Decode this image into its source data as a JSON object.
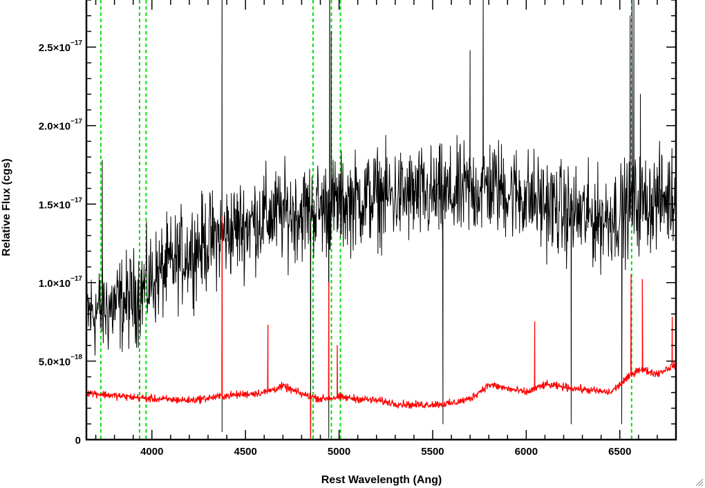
{
  "chart_data": {
    "type": "line",
    "xlabel": "Rest Wavelength (Ang)",
    "ylabel": "Relative Flux (cgs)",
    "xlim": [
      3650,
      6800
    ],
    "ylim": [
      0,
      2.8e-17
    ],
    "x_ticks": [
      {
        "value": 4000,
        "label": "4000"
      },
      {
        "value": 4500,
        "label": "4500"
      },
      {
        "value": 5000,
        "label": "5000"
      },
      {
        "value": 5500,
        "label": "5500"
      },
      {
        "value": 6000,
        "label": "6000"
      },
      {
        "value": 6500,
        "label": "6500"
      }
    ],
    "y_ticks": [
      {
        "value": 0,
        "label": "0"
      },
      {
        "value": 5e-18,
        "mantissa": "5.0×10",
        "exponent": "−18"
      },
      {
        "value": 1e-17,
        "mantissa": "1.0×10",
        "exponent": "−17"
      },
      {
        "value": 1.5e-17,
        "mantissa": "1.5×10",
        "exponent": "−17"
      },
      {
        "value": 2e-17,
        "mantissa": "2.0×10",
        "exponent": "−17"
      },
      {
        "value": 2.5e-17,
        "mantissa": "2.5×10",
        "exponent": "−17"
      }
    ],
    "grid": false,
    "legend": "none",
    "reference_lines": {
      "color": "#00e000",
      "style": "dashed",
      "x": [
        3727,
        3934,
        3969,
        4861,
        4959,
        5007,
        6563
      ]
    },
    "series": [
      {
        "color": "#000000",
        "continuum_x": [
          3650,
          3800,
          3900,
          4000,
          4200,
          4400,
          4600,
          4800,
          5000,
          5200,
          5400,
          5600,
          5800,
          6000,
          6200,
          6400,
          6600,
          6800
        ],
        "continuum_y": [
          8e-18,
          8.5e-18,
          9e-18,
          1.02e-17,
          1.2e-17,
          1.32e-17,
          1.42e-17,
          1.45e-17,
          1.5e-17,
          1.55e-17,
          1.55e-17,
          1.55e-17,
          1.62e-17,
          1.55e-17,
          1.45e-17,
          1.4e-17,
          1.5e-17,
          1.55e-17
        ],
        "noise_amplitude": 4.5e-18,
        "spikes": [
          {
            "x": 3735,
            "y": 1.78e-17
          },
          {
            "x": 4375,
            "y": 3.5e-17
          },
          {
            "x": 4375,
            "y": 5e-19
          },
          {
            "x": 4848,
            "y": 3e-19
          },
          {
            "x": 4945,
            "y": 1e-19
          },
          {
            "x": 4950,
            "y": 3.2e-17
          },
          {
            "x": 4958,
            "y": 2.6e-17
          },
          {
            "x": 5555,
            "y": 1e-18
          },
          {
            "x": 5700,
            "y": 2.48e-17
          },
          {
            "x": 5770,
            "y": 2.9e-17
          },
          {
            "x": 6240,
            "y": 1e-18
          },
          {
            "x": 6510,
            "y": 1e-18
          },
          {
            "x": 6555,
            "y": 2.7e-17
          },
          {
            "x": 6565,
            "y": 2.9e-17
          },
          {
            "x": 6575,
            "y": 2.85e-17
          },
          {
            "x": 6610,
            "y": 2.2e-17
          }
        ]
      },
      {
        "color": "#ff0000",
        "continuum_x": [
          3650,
          3800,
          4000,
          4200,
          4400,
          4600,
          4700,
          4800,
          4900,
          5000,
          5200,
          5300,
          5400,
          5600,
          5700,
          5800,
          6000,
          6100,
          6300,
          6450,
          6500,
          6600,
          6700,
          6800
        ],
        "continuum_y": [
          3e-18,
          2.8e-18,
          2.6e-18,
          2.5e-18,
          2.8e-18,
          3e-18,
          3.4e-18,
          2.9e-18,
          2.6e-18,
          2.7e-18,
          2.5e-18,
          2.3e-18,
          2.2e-18,
          2.3e-18,
          2.6e-18,
          3.5e-18,
          3e-18,
          3.5e-18,
          3.2e-18,
          3e-18,
          3.5e-18,
          4.5e-18,
          4.2e-18,
          4.8e-18
        ],
        "noise_amplitude": 3.5e-19,
        "spikes": [
          {
            "x": 4375,
            "y": 1.42e-17
          },
          {
            "x": 4620,
            "y": 7.3e-18
          },
          {
            "x": 4848,
            "y": 0.0
          },
          {
            "x": 4945,
            "y": 1e-17
          },
          {
            "x": 4990,
            "y": 6e-18
          },
          {
            "x": 6045,
            "y": 7.5e-18
          },
          {
            "x": 6560,
            "y": 1.05e-17
          },
          {
            "x": 6620,
            "y": 1.02e-17
          },
          {
            "x": 6780,
            "y": 7.8e-18
          }
        ]
      }
    ]
  }
}
